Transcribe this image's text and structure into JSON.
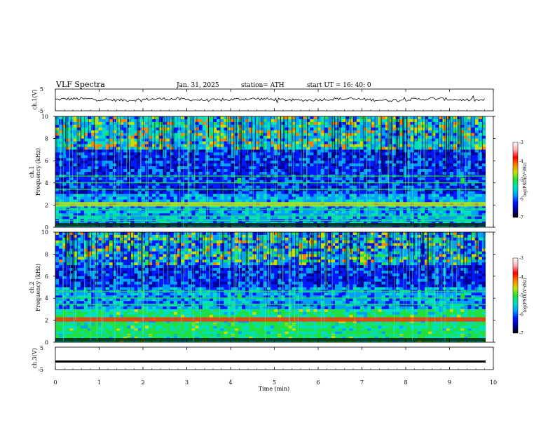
{
  "header": {
    "title": "VLF  Spectra",
    "date": "Jan. 31, 2025",
    "station": "station= ATH",
    "start": "start  UT =   16: 40: 0"
  },
  "colors": {
    "colormap": [
      "#000000",
      "#0000a0",
      "#0018ff",
      "#00a0ff",
      "#00e0c0",
      "#20e040",
      "#c8e000",
      "#ff8000",
      "#ff0000",
      "#ffb0b0",
      "#ffffff"
    ]
  },
  "chart_data": [
    {
      "type": "line",
      "panel": "ch1-waveform",
      "ylabel": "ch.1(V)",
      "yticks": [
        "5",
        "-5"
      ],
      "ylim": [
        -5,
        5
      ],
      "xlim": [
        0,
        10
      ],
      "series": [
        {
          "values_note_free": true,
          "mean": 0.2,
          "amplitude": 1.3
        }
      ]
    },
    {
      "type": "heatmap",
      "panel": "ch1-spectrogram",
      "ylabel_line1": "ch.1",
      "ylabel_line2": "Frequency  (kHz)",
      "yticks": [
        "0",
        "2",
        "4",
        "6",
        "8",
        "10"
      ],
      "ylim": [
        0,
        10
      ],
      "xlim": [
        0,
        10
      ],
      "colorbar": {
        "label": "log(PSD)(V²/Hz)",
        "ticks": [
          "-3",
          "-4",
          "-5",
          "-6",
          "-7"
        ],
        "range": [
          -7,
          -3
        ]
      },
      "bands_khz": [
        0.1,
        0.3,
        0.6,
        1.0,
        1.6,
        2.0,
        2.2,
        3.4,
        4.0,
        4.6
      ],
      "bursts_min": [
        4.2,
        9.3
      ]
    },
    {
      "type": "heatmap",
      "panel": "ch2-spectrogram",
      "ylabel_line1": "ch.2",
      "ylabel_line2": "Frequency  (kHz)",
      "yticks": [
        "0",
        "2",
        "4",
        "6",
        "8",
        "10"
      ],
      "ylim": [
        0,
        10
      ],
      "xlim": [
        0,
        10
      ],
      "colorbar": {
        "label": "log(PSD)(V²/Hz)",
        "ticks": [
          "-3",
          "-4",
          "-5",
          "-6",
          "-7"
        ],
        "range": [
          -7,
          -3
        ]
      },
      "bands_khz": [
        0.3,
        0.6,
        1.0,
        1.6,
        2.0,
        2.2,
        3.4,
        4.0,
        4.6
      ],
      "bursts_min": [
        4.2,
        9.3
      ]
    },
    {
      "type": "line",
      "panel": "ch3-waveform",
      "ylabel": "ch.3(V)",
      "yticks": [
        "5",
        "-5"
      ],
      "ylim": [
        -5,
        5
      ],
      "xlim": [
        0,
        10
      ],
      "series": [
        {
          "constant": -1.4
        }
      ]
    }
  ],
  "xaxis": {
    "label": "Time  (min)",
    "ticks": [
      "0",
      "1",
      "2",
      "3",
      "4",
      "5",
      "6",
      "7",
      "8",
      "9",
      "10"
    ]
  }
}
